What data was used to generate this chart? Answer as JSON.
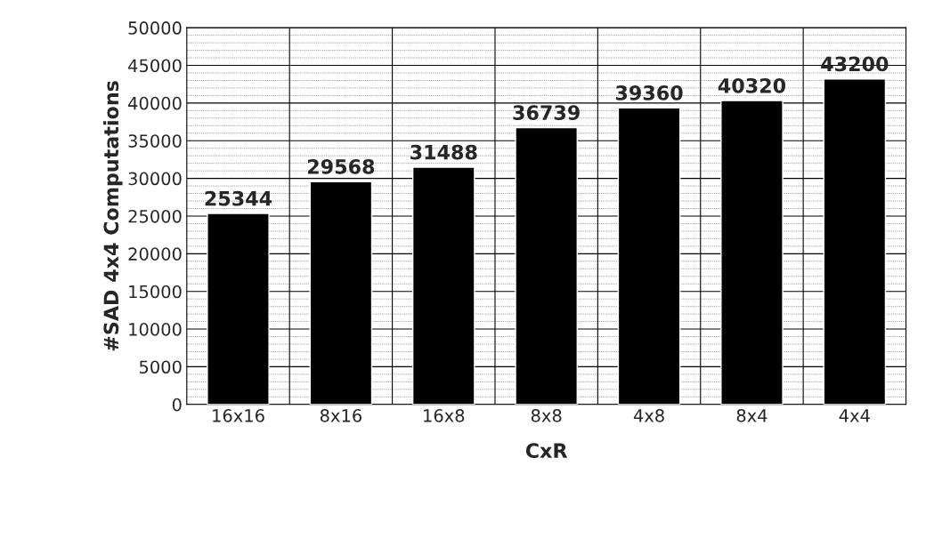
{
  "chart_data": {
    "type": "bar",
    "xlabel": "CxR",
    "ylabel": "#SAD 4x4 Computations",
    "categories": [
      "16x16",
      "8x16",
      "16x8",
      "8x8",
      "4x8",
      "8x4",
      "4x4"
    ],
    "values": [
      25344,
      29568,
      31488,
      36739,
      39360,
      40320,
      43200
    ],
    "color": "#000000",
    "ylim": [
      0,
      50000
    ],
    "yticks": [
      0,
      5000,
      10000,
      15000,
      20000,
      25000,
      30000,
      35000,
      40000,
      45000,
      50000
    ],
    "grid": true,
    "data_labels": true
  }
}
